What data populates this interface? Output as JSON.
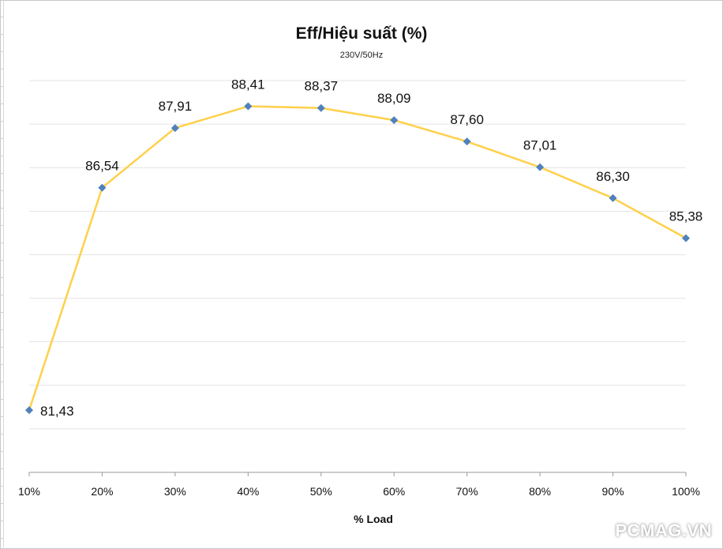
{
  "chart_data": {
    "type": "line",
    "title": "Eff/Hiệu suất (%)",
    "subtitle": "230V/50Hz",
    "xlabel": "% Load",
    "ylabel": "",
    "categories": [
      "10%",
      "20%",
      "30%",
      "40%",
      "50%",
      "60%",
      "70%",
      "80%",
      "90%",
      "100%"
    ],
    "series": [
      {
        "values": [
          81.43,
          86.54,
          87.91,
          88.41,
          88.37,
          88.09,
          87.6,
          87.01,
          86.3,
          85.38
        ],
        "labels": [
          "81,43",
          "86,54",
          "87,91",
          "88,41",
          "88,37",
          "88,09",
          "87,60",
          "87,01",
          "86,30",
          "85,38"
        ],
        "line_color": "#FFD04A",
        "marker_color": "#4F81BD"
      }
    ],
    "ylim": [
      80,
      89.0
    ],
    "grid": true
  },
  "watermark": "PCMAG.VN"
}
